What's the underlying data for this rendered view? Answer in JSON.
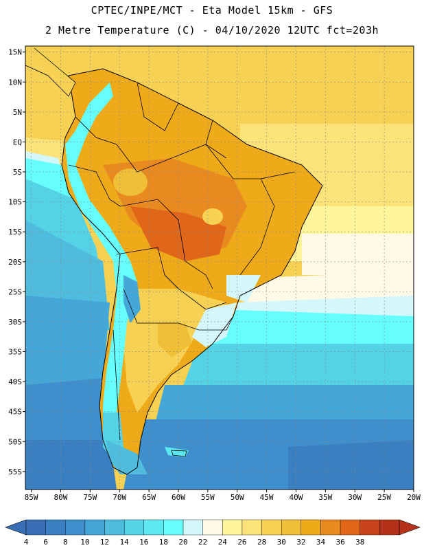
{
  "title_line1": "CPTEC/INPE/MCT -  Eta Model 15km - GFS",
  "title_line2": "2 Metre Temperature (C) - 04/10/2020 12UTC fct=203h",
  "lat_labels": [
    "15N",
    "10N",
    "5N",
    "EQ",
    "5S",
    "10S",
    "15S",
    "20S",
    "25S",
    "30S",
    "35S",
    "40S",
    "45S",
    "50S",
    "55S"
  ],
  "lon_labels": [
    "85W",
    "80W",
    "75W",
    "70W",
    "65W",
    "60W",
    "55W",
    "50W",
    "45W",
    "40W",
    "35W",
    "30W",
    "25W",
    "20W"
  ],
  "colorbar": {
    "labels": [
      "4",
      "6",
      "8",
      "10",
      "12",
      "14",
      "16",
      "18",
      "20",
      "22",
      "24",
      "26",
      "28",
      "30",
      "32",
      "34",
      "36",
      "38"
    ],
    "colors": [
      "#3a6fb5",
      "#3a7fc0",
      "#3f8fcc",
      "#45a6d8",
      "#4fbcde",
      "#55d3e6",
      "#5ce8f0",
      "#66fdfd",
      "#d4f7fb",
      "#fff9e8",
      "#fff59b",
      "#fbe37a",
      "#f6d154",
      "#f0bf38",
      "#eeaa18",
      "#e88a20",
      "#e0661a",
      "#c9441a",
      "#b5321a"
    ]
  },
  "chart_data": {
    "type": "heatmap",
    "variable": "2 Metre Temperature (C)",
    "lon_range": [
      -86,
      -20
    ],
    "lat_range": [
      -58,
      16
    ],
    "lat_ticks": [
      15,
      10,
      5,
      0,
      -5,
      -10,
      -15,
      -20,
      -25,
      -30,
      -35,
      -40,
      -45,
      -50,
      -55
    ],
    "lon_ticks": [
      -85,
      -80,
      -75,
      -70,
      -65,
      -60,
      -55,
      -50,
      -45,
      -40,
      -35,
      -30,
      -25,
      -20
    ],
    "grid": true
  }
}
